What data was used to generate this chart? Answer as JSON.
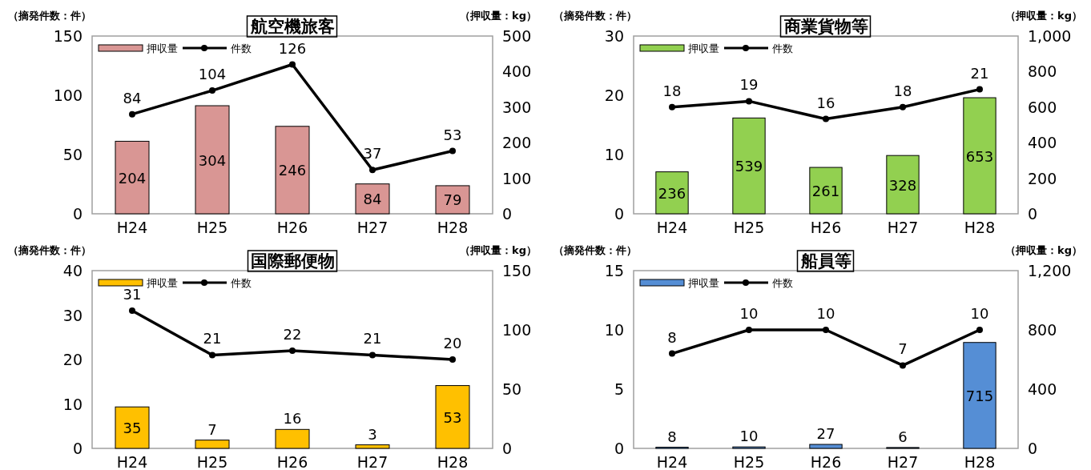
{
  "chart_data": [
    {
      "type": "bar",
      "title": "航空機旅客",
      "ylabel": "（摘発件数：件）",
      "y2label": "（押収量：kg）",
      "categories": [
        "H24",
        "H25",
        "H26",
        "H27",
        "H28"
      ],
      "series": [
        {
          "name": "押収量",
          "axis": "y2",
          "color": "#d99694",
          "values": [
            204,
            304,
            246,
            84,
            79
          ]
        },
        {
          "name": "件数",
          "type": "line",
          "color": "#000000",
          "marker": "circle",
          "values": [
            84,
            104,
            126,
            37,
            53
          ]
        }
      ],
      "ylim": [
        0,
        150
      ],
      "yticks": [
        0,
        50,
        100,
        150
      ],
      "y2lim": [
        0,
        500
      ],
      "y2ticks": [
        0,
        100,
        200,
        300,
        400,
        500
      ],
      "data_labels": true,
      "legend": "top left",
      "grid": false
    },
    {
      "type": "bar",
      "title": "商業貨物等",
      "ylabel": "（摘発件数：件）",
      "y2label": "（押収量：kg）",
      "categories": [
        "H24",
        "H25",
        "H26",
        "H27",
        "H28"
      ],
      "series": [
        {
          "name": "押収量",
          "axis": "y2",
          "color": "#92d050",
          "values": [
            236,
            539,
            261,
            328,
            653
          ]
        },
        {
          "name": "件数",
          "type": "line",
          "color": "#000000",
          "marker": "circle",
          "values": [
            18,
            19,
            16,
            18,
            21
          ]
        }
      ],
      "ylim": [
        0,
        30
      ],
      "yticks": [
        0,
        10,
        20,
        30
      ],
      "y2lim": [
        0,
        1000
      ],
      "y2ticks": [
        0,
        200,
        400,
        600,
        800,
        {
          "value": 1000,
          "label": "1,000"
        }
      ],
      "data_labels": true,
      "legend": "top left",
      "grid": false
    },
    {
      "type": "bar",
      "title": "国際郵便物",
      "ylabel": "（摘発件数：件）",
      "y2label": "（押収量：kg）",
      "categories": [
        "H24",
        "H25",
        "H26",
        "H27",
        "H28"
      ],
      "series": [
        {
          "name": "押収量",
          "axis": "y2",
          "color": "#ffc000",
          "values": [
            35,
            7,
            16,
            3,
            53
          ]
        },
        {
          "name": "件数",
          "type": "line",
          "color": "#000000",
          "marker": "circle",
          "values": [
            31,
            21,
            22,
            21,
            20
          ]
        }
      ],
      "ylim": [
        0,
        40
      ],
      "yticks": [
        0,
        10,
        20,
        30,
        40
      ],
      "y2lim": [
        0,
        150
      ],
      "y2ticks": [
        0,
        50,
        100,
        150
      ],
      "data_labels": true,
      "legend": "top left",
      "grid": false
    },
    {
      "type": "bar",
      "title": "船員等",
      "ylabel": "（摘発件数：件）",
      "y2label": "（押収量：kg）",
      "categories": [
        "H24",
        "H25",
        "H26",
        "H27",
        "H28"
      ],
      "series": [
        {
          "name": "押収量",
          "axis": "y2",
          "color": "#558ed5",
          "values": [
            8,
            10,
            27,
            6,
            715
          ]
        },
        {
          "name": "件数",
          "type": "line",
          "color": "#000000",
          "marker": "circle",
          "values": [
            8,
            10,
            10,
            7,
            10
          ]
        }
      ],
      "ylim": [
        0,
        15
      ],
      "yticks": [
        0,
        5,
        10,
        15
      ],
      "y2lim": [
        0,
        1200
      ],
      "y2ticks": [
        0,
        400,
        800,
        {
          "value": 1200,
          "label": "1,200"
        }
      ],
      "data_labels": true,
      "legend": "top left",
      "grid": false
    }
  ]
}
